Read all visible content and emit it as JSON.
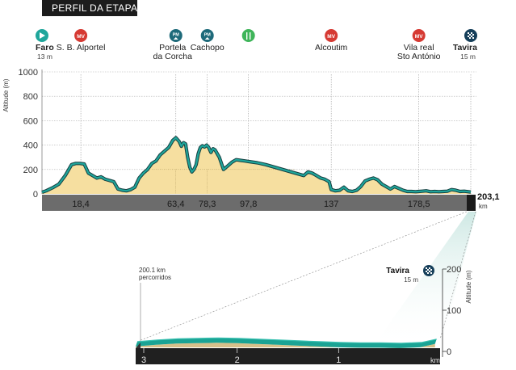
{
  "header": {
    "title": "PERFIL DA ETAPA"
  },
  "chart_data": {
    "type": "area",
    "title": "PERFIL DA ETAPA",
    "ylabel": "Altitude (m)",
    "xlabel": "km",
    "ylim": [
      0,
      1000
    ],
    "yticks": [
      0,
      200,
      400,
      600,
      800,
      1000
    ],
    "xlim": [
      0,
      203.1
    ],
    "total_km": "203,1",
    "km_unit": "km",
    "profile": {
      "x": [
        0,
        2,
        5,
        8,
        11,
        14,
        16,
        18,
        20,
        22,
        24,
        26,
        28,
        30,
        32,
        34,
        36,
        38,
        40,
        42,
        44,
        46,
        48,
        50,
        52,
        54,
        56,
        58,
        60,
        62,
        63.4,
        65,
        66,
        67,
        68,
        69,
        70,
        71,
        72,
        73,
        74,
        75,
        76,
        77,
        78,
        79,
        80,
        81,
        82,
        83,
        84,
        86,
        88,
        90,
        92,
        94,
        96,
        98,
        102,
        106,
        110,
        114,
        118,
        122,
        124,
        126,
        128,
        130,
        132,
        134,
        136,
        137,
        139,
        141,
        143,
        145,
        147,
        149,
        151,
        153,
        155,
        157,
        159,
        161,
        163,
        165,
        167,
        169,
        171,
        173,
        175,
        177,
        178.5,
        180,
        182,
        184,
        186,
        188,
        190,
        192,
        194,
        196,
        198,
        200,
        203.1
      ],
      "y": [
        13,
        25,
        50,
        80,
        150,
        240,
        250,
        250,
        245,
        170,
        150,
        130,
        140,
        120,
        110,
        100,
        40,
        30,
        25,
        35,
        55,
        130,
        170,
        200,
        250,
        270,
        320,
        350,
        380,
        440,
        460,
        430,
        390,
        420,
        410,
        300,
        220,
        180,
        200,
        240,
        330,
        380,
        395,
        385,
        400,
        380,
        340,
        370,
        360,
        330,
        300,
        200,
        230,
        260,
        280,
        275,
        270,
        265,
        255,
        240,
        220,
        200,
        180,
        160,
        150,
        180,
        170,
        150,
        130,
        120,
        100,
        35,
        25,
        30,
        55,
        25,
        20,
        30,
        60,
        105,
        120,
        130,
        115,
        80,
        60,
        40,
        60,
        45,
        30,
        20,
        20,
        18,
        20,
        22,
        25,
        18,
        20,
        18,
        20,
        22,
        35,
        30,
        20,
        22,
        15
      ]
    },
    "km_marks": [
      "18,4",
      "63,4",
      "78,3",
      "97,8",
      "137",
      "178,5"
    ],
    "km_mark_values": [
      18.4,
      63.4,
      78.3,
      97.8,
      137,
      178.5
    ],
    "points": [
      {
        "km": 0,
        "icon": "start",
        "badge": "",
        "name": "Faro",
        "alt": "13 m",
        "bold": true
      },
      {
        "km": 18.4,
        "icon": "mv",
        "badge": "MV",
        "name": "S. B. Alportel",
        "alt": "",
        "bold": false
      },
      {
        "km": 63.4,
        "icon": "pm",
        "badge": "PM",
        "name": "Portela da Corcha",
        "alt": "",
        "bold": false
      },
      {
        "km": 78.3,
        "icon": "pm",
        "badge": "PM",
        "name": "Cachopo",
        "alt": "",
        "bold": false
      },
      {
        "km": 97.8,
        "icon": "food",
        "badge": "",
        "name": "",
        "alt": "",
        "bold": false
      },
      {
        "km": 137,
        "icon": "mv",
        "badge": "MV",
        "name": "Alcoutim",
        "alt": "",
        "bold": false
      },
      {
        "km": 178.5,
        "icon": "mv",
        "badge": "MV",
        "name": "Vila real Sto António",
        "alt": "",
        "bold": false
      },
      {
        "km": 203.1,
        "icon": "finish",
        "badge": "",
        "name": "Tavira",
        "alt": "15 m",
        "bold": true
      }
    ],
    "detail": {
      "type": "area",
      "label_top": "200.1 km",
      "label_bottom": "percorridos",
      "finish_name": "Tavira",
      "finish_alt": "15 m",
      "ylabel": "Altitude (m)",
      "ylim": [
        0,
        200
      ],
      "yticks": [
        0,
        100,
        200
      ],
      "xlim": [
        3,
        0
      ],
      "xticks": [
        "3",
        "2",
        "1"
      ],
      "xtick_values": [
        3,
        2,
        1
      ],
      "km_unit": "km",
      "x": [
        3,
        2.8,
        2.6,
        2.4,
        2.2,
        2.0,
        1.8,
        1.6,
        1.4,
        1.2,
        1.0,
        0.8,
        0.6,
        0.4,
        0.2,
        0.05
      ],
      "y": [
        12,
        16,
        19,
        20,
        21,
        20,
        18,
        16,
        14,
        12,
        10,
        9,
        9,
        8,
        10,
        18
      ]
    }
  }
}
